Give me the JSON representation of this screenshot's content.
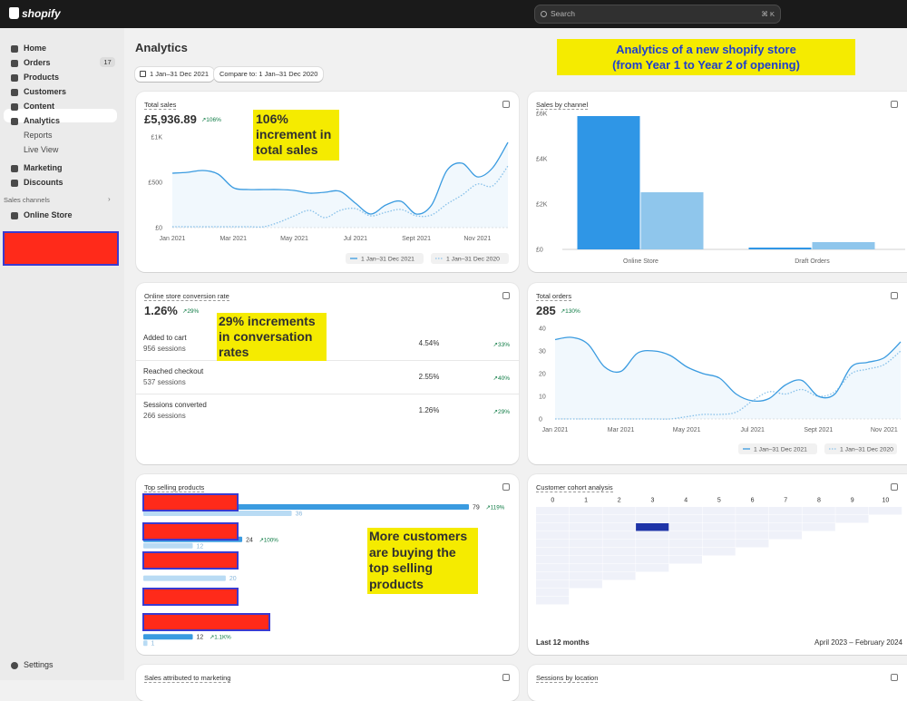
{
  "topbar": {
    "logo": "shopify",
    "search": "Search",
    "shortcut": "⌘ K"
  },
  "nav": [
    {
      "label": "Home"
    },
    {
      "label": "Orders",
      "badge": 17
    },
    {
      "label": "Products"
    },
    {
      "label": "Customers"
    },
    {
      "label": "Content"
    },
    {
      "label": "Analytics"
    },
    {
      "label": "Reports"
    },
    {
      "label": "Live View"
    },
    {
      "label": "Marketing"
    },
    {
      "label": "Discounts"
    }
  ],
  "sales_channels": {
    "title": "Sales channels",
    "items": [
      "Online Store"
    ]
  },
  "settings": "Settings",
  "page_title": "Analytics",
  "date_range": "1 Jan–31 Dec 2021",
  "compare": "Compare to: 1 Jan–31 Dec 2020",
  "annotations": {
    "header": [
      "Analytics of a new shopify store",
      "(from Year 1 to Year 2 of opening)"
    ],
    "sales": [
      "106%",
      "increment in",
      "total sales"
    ],
    "conversion": [
      "29% increments",
      "in conversation",
      "rates"
    ],
    "products": [
      "More customers",
      "are buying the",
      "top selling",
      "products"
    ]
  },
  "conversion": {
    "title": "Online store conversion rate",
    "value": "1.26%",
    "change": "↗29%",
    "rows": [
      {
        "label": "Added to cart",
        "sessions": "956 sessions",
        "rate": "4.54%",
        "change": "↗33%"
      },
      {
        "label": "Reached checkout",
        "sessions": "537 sessions",
        "rate": "2.55%",
        "change": "↗40%"
      },
      {
        "label": "Sessions converted",
        "sessions": "266 sessions",
        "rate": "1.26%",
        "change": "↗29%"
      }
    ]
  },
  "bottom_cards": [
    "Sales attributed to marketing",
    "Sessions by location"
  ],
  "chart_data": [
    {
      "type": "line",
      "title": "Total sales",
      "value": "£5,936.89",
      "change": "↗106%",
      "categories": [
        "Jan 2021",
        null,
        null,
        null,
        "Mar 2021",
        null,
        null,
        null,
        "May 2021",
        null,
        null,
        null,
        "Jul 2021",
        null,
        null,
        null,
        "Sept 2021",
        null,
        null,
        null,
        "Nov 2021",
        null,
        null
      ],
      "series": [
        {
          "name": "1 Jan–31 Dec 2021",
          "color": "#3a9be0",
          "line_style": "solid",
          "values": [
            600,
            610,
            630,
            590,
            440,
            420,
            420,
            420,
            410,
            380,
            390,
            400,
            270,
            150,
            250,
            290,
            150,
            250,
            630,
            710,
            560,
            660,
            940
          ]
        },
        {
          "name": "1 Jan–31 Dec 2020",
          "color": "#8cc3ea",
          "line_style": "dotted",
          "values": [
            10,
            10,
            10,
            10,
            10,
            10,
            10,
            60,
            130,
            190,
            110,
            190,
            210,
            130,
            170,
            200,
            130,
            140,
            260,
            360,
            480,
            460,
            680
          ]
        }
      ],
      "ylim": [
        0,
        1000
      ],
      "yticks": [
        {
          "value": 0,
          "label": "£0"
        },
        {
          "value": 500,
          "label": "£500"
        },
        {
          "value": 1000,
          "label": "£1K"
        }
      ]
    },
    {
      "type": "bar",
      "title": "Sales by channel",
      "categories": [
        "Online Store",
        "Draft Orders"
      ],
      "series": [
        {
          "color": "#2f96e6",
          "values": [
            5880,
            80
          ]
        },
        {
          "color": "#8fc6ec",
          "values": [
            2520,
            320
          ]
        }
      ],
      "ylim": [
        0,
        6000
      ],
      "yticks": [
        {
          "value": 0,
          "label": "£0"
        },
        {
          "value": 2000,
          "label": "£2K"
        },
        {
          "value": 4000,
          "label": "£4K"
        },
        {
          "value": 6000,
          "label": "£6K"
        }
      ]
    },
    {
      "type": "line",
      "title": "Total orders",
      "value": "285",
      "change": "↗130%",
      "categories": [
        "Jan 2021",
        null,
        null,
        null,
        "Mar 2021",
        null,
        null,
        null,
        "May 2021",
        null,
        null,
        null,
        "Jul 2021",
        null,
        null,
        null,
        "Sept 2021",
        null,
        null,
        null,
        "Nov 2021",
        null
      ],
      "series": [
        {
          "name": "1 Jan–31 Dec 2021",
          "color": "#3a9be0",
          "line_style": "solid",
          "values": [
            35,
            36,
            33,
            23,
            21,
            29,
            30,
            28,
            23,
            20,
            18,
            11,
            8,
            9,
            15,
            17,
            10,
            11,
            23,
            25,
            27,
            34
          ]
        },
        {
          "name": "1 Jan–31 Dec 2020",
          "color": "#8cc3ea",
          "line_style": "dotted",
          "values": [
            0,
            0,
            0,
            0,
            0,
            0,
            0,
            0,
            1,
            2,
            2,
            3,
            8,
            12,
            11,
            13,
            10,
            12,
            20,
            22,
            24,
            30
          ]
        }
      ],
      "ylim": [
        0,
        40
      ],
      "yticks": [
        0,
        10,
        20,
        30,
        40
      ]
    },
    {
      "type": "hbar",
      "title": "Top selling products",
      "categories": [
        null,
        null,
        null,
        null,
        null
      ],
      "series": [
        {
          "color": "#3a9be0",
          "values": [
            79,
            24,
            null,
            null,
            12
          ],
          "change": [
            "↗119%",
            "↗100%",
            null,
            null,
            "↗1.1K%"
          ]
        },
        {
          "color": "#b9dbf4",
          "values": [
            36,
            12,
            20,
            null,
            1
          ]
        }
      ]
    },
    {
      "type": "heatmap",
      "title": "Customer cohort analysis",
      "columns": [
        0,
        1,
        2,
        3,
        4,
        5,
        6,
        7,
        8,
        9,
        10
      ],
      "values": [
        [
          1,
          1,
          1,
          1,
          1,
          1,
          1,
          1,
          1,
          1,
          1
        ],
        [
          1,
          1,
          1,
          1,
          1,
          1,
          1,
          1,
          1,
          1
        ],
        [
          1,
          1,
          1,
          10,
          1,
          1,
          1,
          1,
          1
        ],
        [
          1,
          1,
          1,
          1,
          1,
          1,
          1,
          1
        ],
        [
          1,
          1,
          1,
          1,
          1,
          1,
          1
        ],
        [
          1,
          1,
          1,
          1,
          1,
          1
        ],
        [
          1,
          1,
          1,
          1,
          1
        ],
        [
          1,
          1,
          1,
          1
        ],
        [
          1,
          1,
          1
        ],
        [
          1,
          1
        ],
        [
          1
        ],
        [
          1
        ]
      ],
      "color": "#1f34a8",
      "period": "Last 12 months",
      "range": "April 2023 – February 2024"
    }
  ]
}
